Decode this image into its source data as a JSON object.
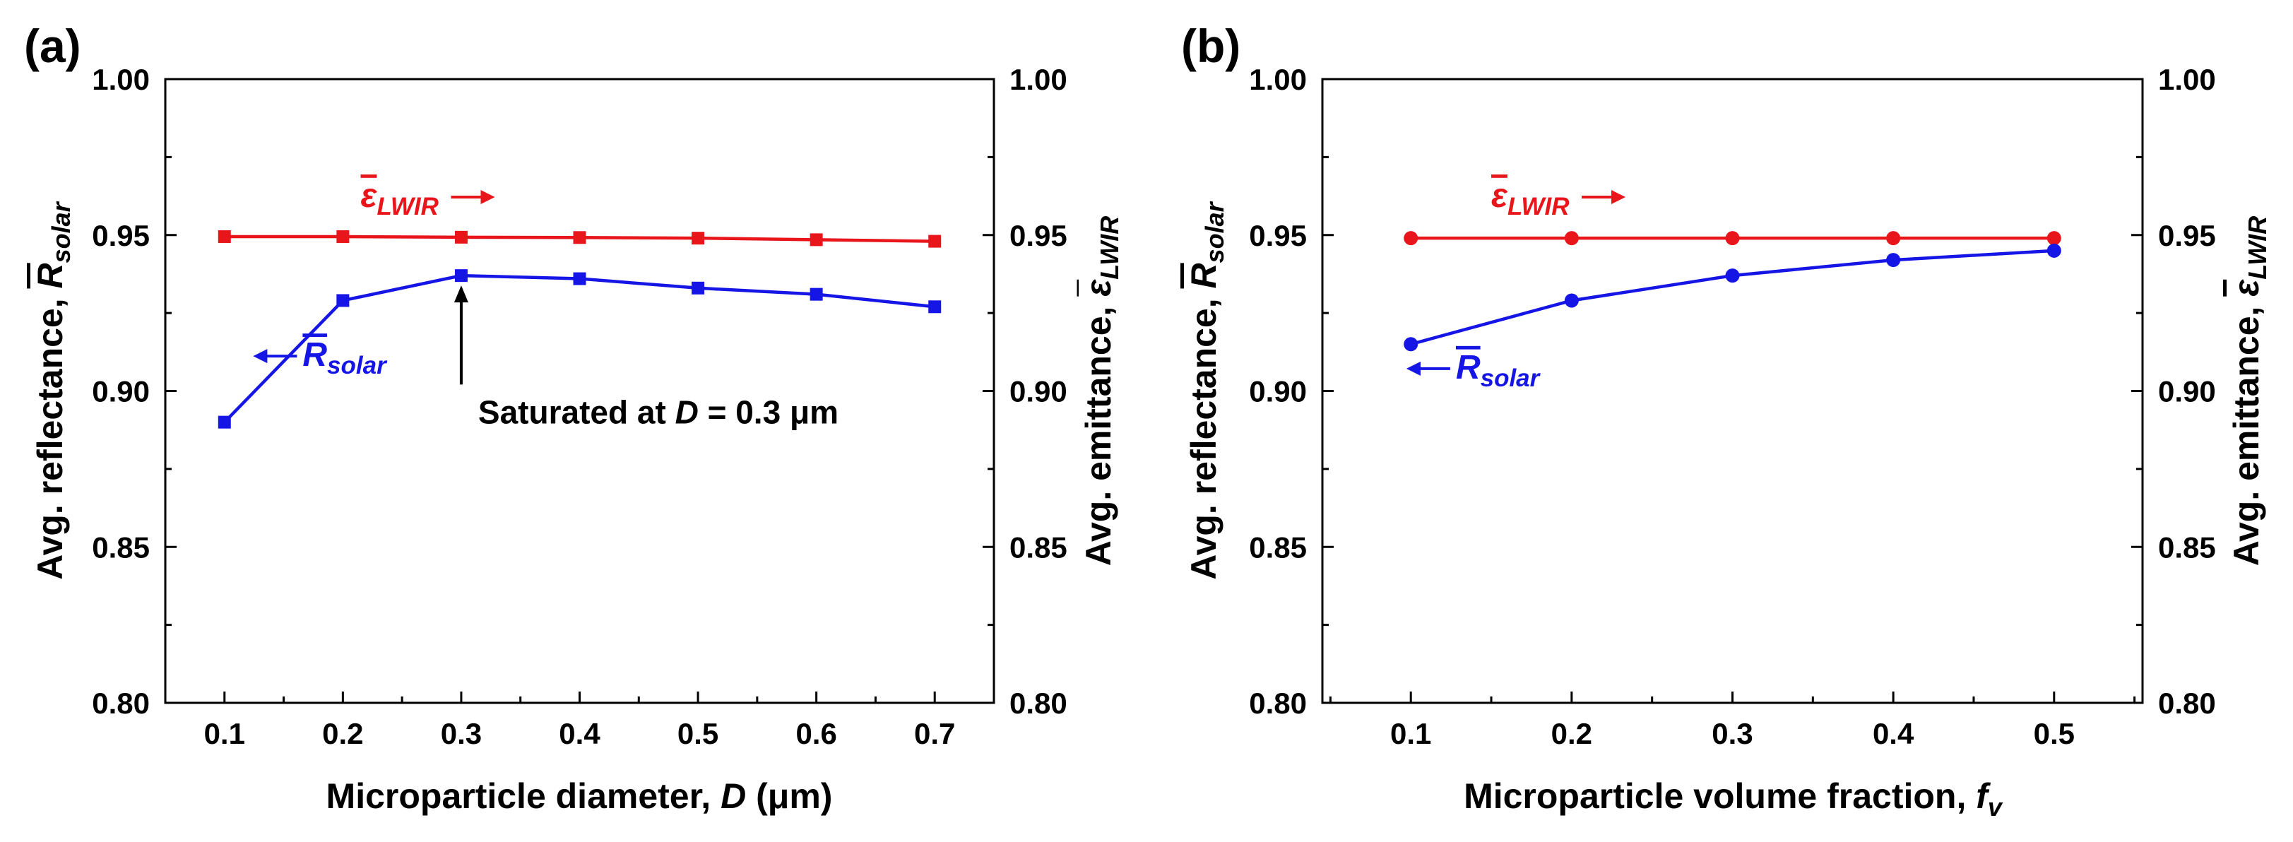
{
  "colors": {
    "solar": "#1515e6",
    "lwir": "#e8161b",
    "axis": "#000000",
    "annotation": "#000000"
  },
  "chart_data": [
    {
      "panel_label": "(a)",
      "type": "line",
      "x": [
        0.1,
        0.2,
        0.3,
        0.4,
        0.5,
        0.6,
        0.7
      ],
      "xlim": [
        0.05,
        0.75
      ],
      "ylim": [
        0.8,
        1.0
      ],
      "xticks": [
        "0.1",
        "0.2",
        "0.3",
        "0.4",
        "0.5",
        "0.6",
        "0.7"
      ],
      "yticks": [
        "0.80",
        "0.85",
        "0.90",
        "0.95",
        "1.00"
      ],
      "xlabel": {
        "text": "Microparticle diameter, ",
        "var": "D",
        "unit": " (μm)"
      },
      "ylabel_left": {
        "text": "Avg. reflectance, ",
        "sym": "R",
        "sub": "solar"
      },
      "ylabel_right": {
        "text": "Avg. emittance, ",
        "sym": "ε",
        "sub": "LWIR"
      },
      "marker": "square",
      "series": [
        {
          "name": "ε LWIR",
          "sym": "ε",
          "sub": "LWIR",
          "axis": "right",
          "values": [
            0.9495,
            0.9495,
            0.9493,
            0.9492,
            0.949,
            0.9485,
            0.948
          ]
        },
        {
          "name": "R solar",
          "sym": "R",
          "sub": "solar",
          "axis": "left",
          "values": [
            0.89,
            0.929,
            0.937,
            0.936,
            0.933,
            0.931,
            0.927
          ]
        }
      ],
      "annotation": {
        "text": "Saturated at ",
        "var": "D",
        "rest": " = 0.3 μm",
        "x": 0.3,
        "y": 0.937,
        "y_text": 0.893
      },
      "series_labels": [
        {
          "series": 0,
          "arrow": "right",
          "x": 0.215,
          "y": 0.959
        },
        {
          "series": 1,
          "arrow": "left",
          "x": 0.166,
          "y": 0.908
        }
      ]
    },
    {
      "panel_label": "(b)",
      "type": "line",
      "x": [
        0.1,
        0.2,
        0.3,
        0.4,
        0.5
      ],
      "xlim": [
        0.045,
        0.555
      ],
      "ylim": [
        0.8,
        1.0
      ],
      "xticks": [
        "0.1",
        "0.2",
        "0.3",
        "0.4",
        "0.5"
      ],
      "yticks": [
        "0.80",
        "0.85",
        "0.90",
        "0.95",
        "1.00"
      ],
      "xlabel": {
        "text": "Microparticle volume fraction, ",
        "var": "f",
        "sub": "v"
      },
      "ylabel_left": {
        "text": "Avg. reflectance, ",
        "sym": "R",
        "sub": "solar"
      },
      "ylabel_right": {
        "text": "Avg. emittance, ",
        "sym": "ε",
        "sub": "LWIR"
      },
      "marker": "circle",
      "series": [
        {
          "name": "ε LWIR",
          "sym": "ε",
          "sub": "LWIR",
          "axis": "right",
          "values": [
            0.949,
            0.949,
            0.949,
            0.949,
            0.949
          ]
        },
        {
          "name": "R solar",
          "sym": "R",
          "sub": "solar",
          "axis": "left",
          "values": [
            0.915,
            0.929,
            0.937,
            0.942,
            0.945
          ]
        }
      ],
      "series_labels": [
        {
          "series": 0,
          "arrow": "right",
          "x": 0.15,
          "y": 0.959
        },
        {
          "series": 1,
          "arrow": "left",
          "x": 0.128,
          "y": 0.904
        }
      ]
    }
  ]
}
